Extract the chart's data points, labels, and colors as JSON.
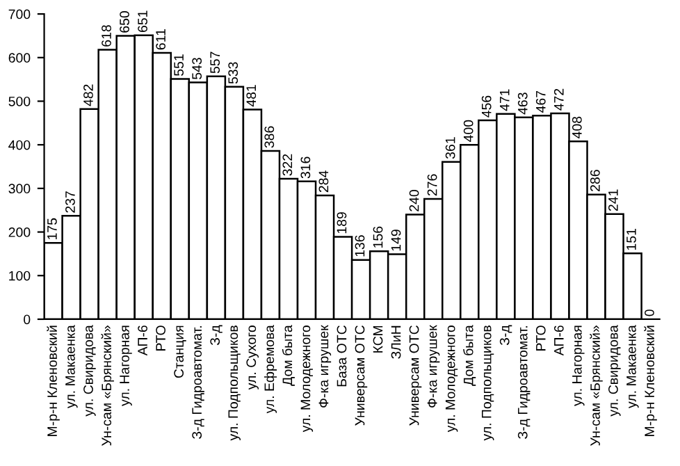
{
  "chart_data": {
    "type": "bar",
    "categories": [
      "М-р-н Кленовский",
      "ул. Макаенка",
      "ул. Свиридова",
      "Ун-сам «Брянский»",
      "ул. Нагорная",
      "АП-6",
      "РТО",
      "Станция",
      "З-д Гидроавтомат.",
      "З-д",
      "ул. Подпольщиков",
      "ул. Сухого",
      "ул. Ефремова",
      "Дом быта",
      "ул. Молодежного",
      "Ф-ка игрушек",
      "База ОТС",
      "Универсам ОТС",
      "КСМ",
      "ЗЛиН",
      "Универсам ОТС",
      "Ф-ка игрушек",
      "ул. Молодежного",
      "Дом быта",
      "ул. Подпольщиков",
      "З-д",
      "З-д Гидроавтомат.",
      "РТО",
      "АП-6",
      "ул. Нагорная",
      "Ун-сам «Брянский»",
      "ул. Свиридова",
      "ул. Макаенка",
      "М-р-н Кленовский"
    ],
    "values": [
      175,
      237,
      482,
      618,
      650,
      651,
      611,
      551,
      543,
      557,
      533,
      481,
      386,
      322,
      316,
      284,
      189,
      136,
      156,
      149,
      240,
      276,
      361,
      400,
      456,
      471,
      463,
      467,
      472,
      408,
      286,
      241,
      151,
      0
    ],
    "color": "#ffffff",
    "ylim": [
      0,
      700
    ],
    "yticks": [
      0,
      100,
      200,
      300,
      400,
      500,
      600,
      700
    ],
    "data_labels": true,
    "grid": false,
    "legend": false
  }
}
